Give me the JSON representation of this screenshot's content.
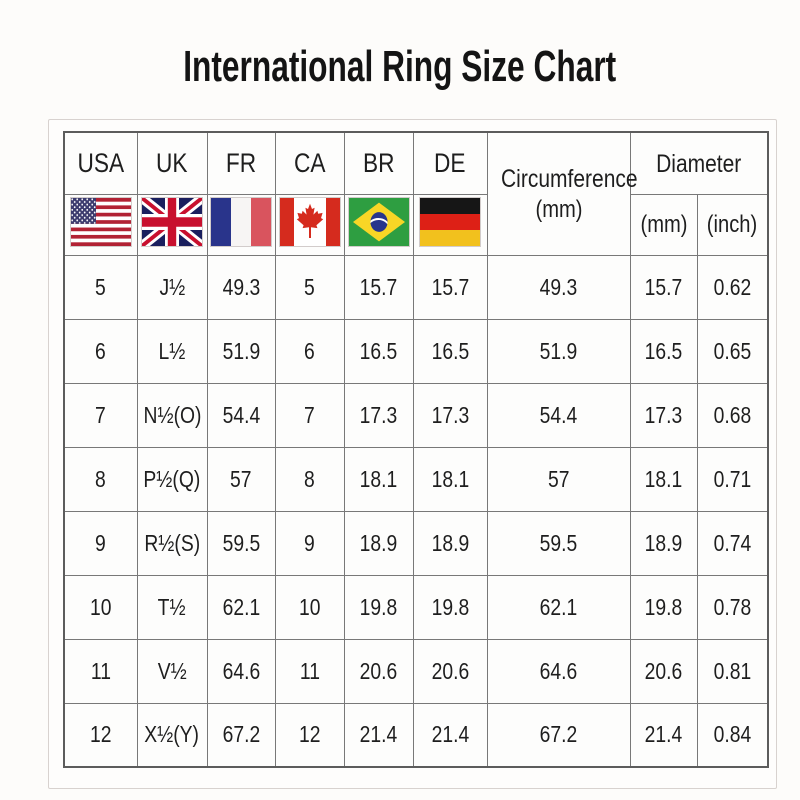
{
  "colors": {
    "background": "#fdfcfa",
    "panel_border": "#d8d2cf",
    "table_grid": "#787878",
    "text": "#1e1e1e"
  },
  "header": {
    "codes": [
      "USA",
      "UK",
      "FR",
      "CA",
      "BR",
      "DE"
    ],
    "flags": [
      "usa-flag",
      "uk-flag",
      "france-flag",
      "canada-flag",
      "brazil-flag",
      "germany-flag"
    ],
    "circumference": {
      "label": "Circumference",
      "unit": "(mm)"
    },
    "diameter": {
      "label": "Diameter",
      "unit_mm": "(mm)",
      "unit_inch": "(inch)"
    }
  },
  "chart_data": {
    "type": "table",
    "title": "International Ring Size Chart",
    "columns": [
      "USA",
      "UK",
      "FR",
      "CA",
      "BR",
      "DE",
      "Circumference (mm)",
      "Diameter (mm)",
      "Diameter (inch)"
    ],
    "rows": [
      [
        "5",
        "J½",
        "49.3",
        "5",
        "15.7",
        "15.7",
        "49.3",
        "15.7",
        "0.62"
      ],
      [
        "6",
        "L½",
        "51.9",
        "6",
        "16.5",
        "16.5",
        "51.9",
        "16.5",
        "0.65"
      ],
      [
        "7",
        "N½(O)",
        "54.4",
        "7",
        "17.3",
        "17.3",
        "54.4",
        "17.3",
        "0.68"
      ],
      [
        "8",
        "P½(Q)",
        "57",
        "8",
        "18.1",
        "18.1",
        "57",
        "18.1",
        "0.71"
      ],
      [
        "9",
        "R½(S)",
        "59.5",
        "9",
        "18.9",
        "18.9",
        "59.5",
        "18.9",
        "0.74"
      ],
      [
        "10",
        "T½",
        "62.1",
        "10",
        "19.8",
        "19.8",
        "62.1",
        "19.8",
        "0.78"
      ],
      [
        "11",
        "V½",
        "64.6",
        "11",
        "20.6",
        "20.6",
        "64.6",
        "20.6",
        "0.81"
      ],
      [
        "12",
        "X½(Y)",
        "67.2",
        "12",
        "21.4",
        "21.4",
        "67.2",
        "21.4",
        "0.84"
      ]
    ]
  }
}
